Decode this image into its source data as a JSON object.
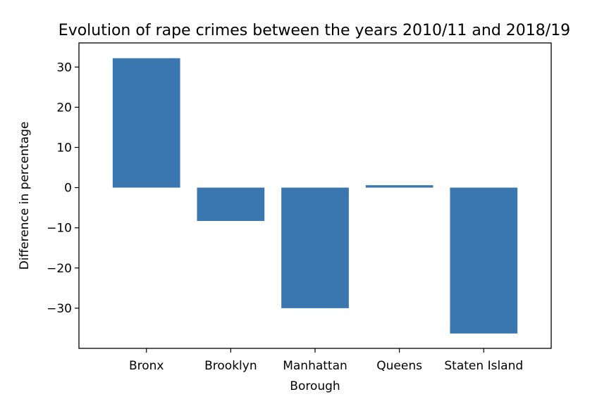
{
  "chart_data": {
    "type": "bar",
    "title": "Evolution of rape crimes between the years 2010/11 and 2018/19",
    "xlabel": "Borough",
    "ylabel": "Difference in percentage",
    "categories": [
      "Bronx",
      "Brooklyn",
      "Manhattan",
      "Queens",
      "Staten Island"
    ],
    "values": [
      32.2,
      -8.3,
      -30.0,
      0.6,
      -36.3
    ],
    "ylim": [
      -40,
      36
    ],
    "yticks": [
      30,
      20,
      10,
      0,
      -10,
      -20,
      -30
    ],
    "ytick_labels": [
      "30",
      "20",
      "10",
      "0",
      "−10",
      "−20",
      "−30"
    ],
    "bar_color": "#3a76af",
    "grid": false,
    "legend": "none"
  }
}
